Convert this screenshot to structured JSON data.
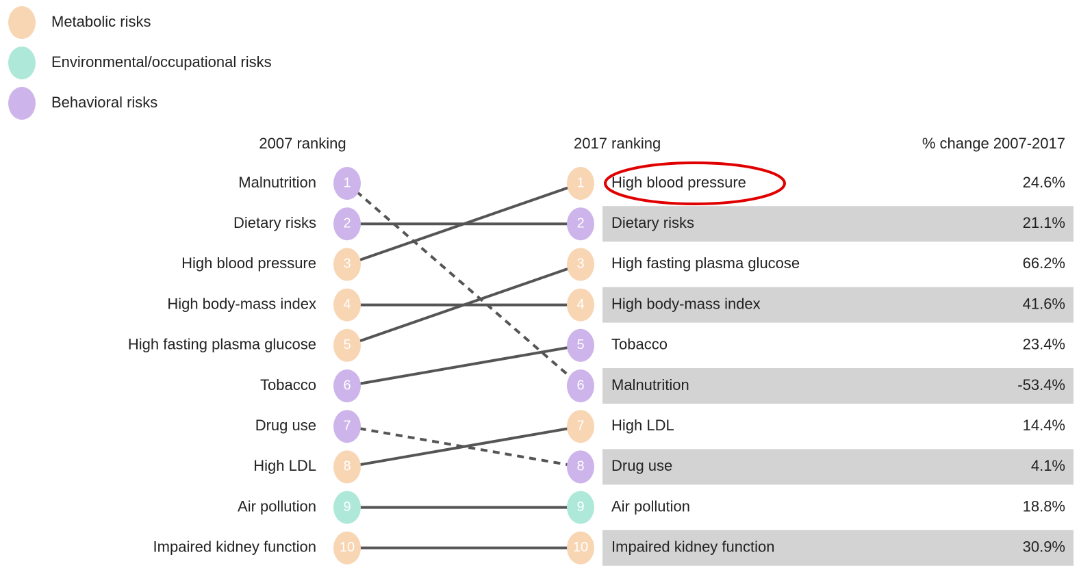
{
  "legend": [
    {
      "label": "Metabolic risks",
      "color": "#f8d5b3"
    },
    {
      "label": "Environmental/occupational risks",
      "color": "#aee8d8"
    },
    {
      "label": "Behavioral risks",
      "color": "#cdb4ea"
    }
  ],
  "headers": {
    "left": "2007 ranking",
    "middle": "2017 ranking",
    "right": "% change 2007-2017"
  },
  "ranking_2007": [
    {
      "rank": 1,
      "label": "Malnutrition",
      "group": 2
    },
    {
      "rank": 2,
      "label": "Dietary risks",
      "group": 2
    },
    {
      "rank": 3,
      "label": "High blood pressure",
      "group": 0
    },
    {
      "rank": 4,
      "label": "High body-mass index",
      "group": 0
    },
    {
      "rank": 5,
      "label": "High fasting plasma glucose",
      "group": 0
    },
    {
      "rank": 6,
      "label": "Tobacco",
      "group": 2
    },
    {
      "rank": 7,
      "label": "Drug use",
      "group": 2
    },
    {
      "rank": 8,
      "label": "High LDL",
      "group": 0
    },
    {
      "rank": 9,
      "label": "Air pollution",
      "group": 1
    },
    {
      "rank": 10,
      "label": "Impaired kidney function",
      "group": 0
    }
  ],
  "ranking_2017": [
    {
      "rank": 1,
      "label": "High blood pressure",
      "group": 0,
      "change": "24.6%"
    },
    {
      "rank": 2,
      "label": "Dietary risks",
      "group": 2,
      "change": "21.1%"
    },
    {
      "rank": 3,
      "label": "High fasting plasma glucose",
      "group": 0,
      "change": "66.2%"
    },
    {
      "rank": 4,
      "label": "High body-mass index",
      "group": 0,
      "change": "41.6%"
    },
    {
      "rank": 5,
      "label": "Tobacco",
      "group": 2,
      "change": "23.4%"
    },
    {
      "rank": 6,
      "label": "Malnutrition",
      "group": 2,
      "change": "-53.4%"
    },
    {
      "rank": 7,
      "label": "High LDL",
      "group": 0,
      "change": "14.4%"
    },
    {
      "rank": 8,
      "label": "Drug use",
      "group": 2,
      "change": "4.1%"
    },
    {
      "rank": 9,
      "label": "Air pollution",
      "group": 1,
      "change": "18.8%"
    },
    {
      "rank": 10,
      "label": "Impaired kidney function",
      "group": 0,
      "change": "30.9%"
    }
  ]
}
